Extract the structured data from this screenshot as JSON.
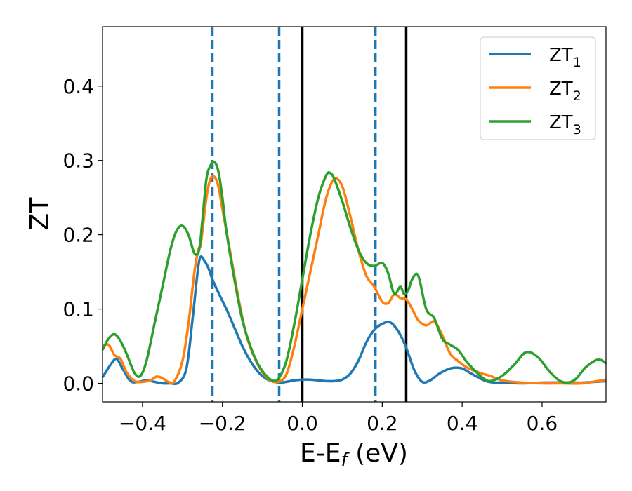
{
  "chart_data": {
    "type": "line",
    "xlabel": "E-E",
    "xlabel_sub": "f",
    "xlabel_unit": " (eV)",
    "ylabel": "ZT",
    "xlim": [
      -0.5,
      0.76
    ],
    "ylim": [
      -0.025,
      0.48
    ],
    "xticks": [
      -0.4,
      -0.2,
      0.0,
      0.2,
      0.4,
      0.6
    ],
    "xtick_labels": [
      "−0.4",
      "−0.2",
      "0.0",
      "0.2",
      "0.4",
      "0.6"
    ],
    "yticks": [
      0.0,
      0.1,
      0.2,
      0.3,
      0.4
    ],
    "ytick_labels": [
      "0.0",
      "0.1",
      "0.2",
      "0.3",
      "0.4"
    ],
    "grid": false,
    "legend_position": "top-right",
    "vlines": [
      {
        "x": -0.225,
        "style": "dashed",
        "color": "#1f77b4"
      },
      {
        "x": -0.058,
        "style": "dashed",
        "color": "#1f77b4"
      },
      {
        "x": 0.0,
        "style": "solid",
        "color": "#000000"
      },
      {
        "x": 0.183,
        "style": "dashed",
        "color": "#1f77b4"
      },
      {
        "x": 0.26,
        "style": "solid",
        "color": "#000000"
      }
    ],
    "series": [
      {
        "name": "ZT",
        "name_sub": "1",
        "color": "#1f77b4",
        "x": [
          -0.5,
          -0.48,
          -0.465,
          -0.45,
          -0.43,
          -0.41,
          -0.39,
          -0.37,
          -0.35,
          -0.33,
          -0.31,
          -0.29,
          -0.275,
          -0.262,
          -0.255,
          -0.245,
          -0.235,
          -0.225,
          -0.21,
          -0.19,
          -0.17,
          -0.15,
          -0.13,
          -0.11,
          -0.09,
          -0.07,
          -0.055,
          -0.04,
          -0.02,
          0.0,
          0.02,
          0.04,
          0.06,
          0.08,
          0.1,
          0.12,
          0.14,
          0.16,
          0.18,
          0.2,
          0.22,
          0.24,
          0.26,
          0.28,
          0.3,
          0.32,
          0.34,
          0.36,
          0.38,
          0.4,
          0.42,
          0.44,
          0.46,
          0.48,
          0.5,
          0.55,
          0.6,
          0.65,
          0.7,
          0.76
        ],
        "y": [
          0.008,
          0.025,
          0.033,
          0.02,
          0.003,
          0.002,
          0.004,
          0.002,
          0.0,
          0.0,
          0.001,
          0.02,
          0.085,
          0.15,
          0.17,
          0.165,
          0.155,
          0.14,
          0.122,
          0.1,
          0.075,
          0.05,
          0.03,
          0.015,
          0.006,
          0.002,
          0.001,
          0.002,
          0.004,
          0.005,
          0.005,
          0.004,
          0.003,
          0.003,
          0.005,
          0.013,
          0.03,
          0.055,
          0.072,
          0.08,
          0.082,
          0.07,
          0.048,
          0.018,
          0.002,
          0.004,
          0.012,
          0.018,
          0.021,
          0.02,
          0.014,
          0.008,
          0.003,
          0.001,
          0.001,
          0.0,
          0.001,
          0.001,
          0.001,
          0.003
        ]
      },
      {
        "name": "ZT",
        "name_sub": "2",
        "color": "#ff7f0e",
        "x": [
          -0.5,
          -0.485,
          -0.47,
          -0.455,
          -0.44,
          -0.42,
          -0.4,
          -0.38,
          -0.365,
          -0.35,
          -0.335,
          -0.32,
          -0.3,
          -0.285,
          -0.27,
          -0.26,
          -0.255,
          -0.25,
          -0.24,
          -0.23,
          -0.22,
          -0.21,
          -0.2,
          -0.18,
          -0.16,
          -0.14,
          -0.12,
          -0.1,
          -0.08,
          -0.06,
          -0.04,
          -0.02,
          0.0,
          0.02,
          0.04,
          0.06,
          0.08,
          0.1,
          0.12,
          0.14,
          0.16,
          0.18,
          0.2,
          0.215,
          0.23,
          0.245,
          0.26,
          0.275,
          0.29,
          0.31,
          0.33,
          0.35,
          0.37,
          0.39,
          0.41,
          0.43,
          0.45,
          0.47,
          0.5,
          0.55,
          0.6,
          0.65,
          0.7,
          0.76
        ],
        "y": [
          0.05,
          0.052,
          0.038,
          0.033,
          0.015,
          0.003,
          0.002,
          0.004,
          0.009,
          0.007,
          0.002,
          0.003,
          0.03,
          0.08,
          0.15,
          0.18,
          0.185,
          0.205,
          0.25,
          0.275,
          0.278,
          0.265,
          0.235,
          0.175,
          0.115,
          0.065,
          0.035,
          0.015,
          0.004,
          0.002,
          0.012,
          0.05,
          0.1,
          0.15,
          0.2,
          0.25,
          0.275,
          0.265,
          0.225,
          0.18,
          0.145,
          0.13,
          0.11,
          0.108,
          0.12,
          0.115,
          0.113,
          0.1,
          0.085,
          0.078,
          0.083,
          0.065,
          0.04,
          0.03,
          0.022,
          0.017,
          0.013,
          0.01,
          0.004,
          0.001,
          0.0,
          0.0,
          0.0,
          0.005
        ]
      },
      {
        "name": "ZT",
        "name_sub": "3",
        "color": "#2ca02c",
        "x": [
          -0.5,
          -0.485,
          -0.47,
          -0.455,
          -0.44,
          -0.42,
          -0.405,
          -0.39,
          -0.37,
          -0.35,
          -0.33,
          -0.315,
          -0.3,
          -0.285,
          -0.27,
          -0.258,
          -0.25,
          -0.24,
          -0.23,
          -0.22,
          -0.21,
          -0.2,
          -0.19,
          -0.17,
          -0.15,
          -0.13,
          -0.11,
          -0.09,
          -0.075,
          -0.06,
          -0.04,
          -0.02,
          0.0,
          0.02,
          0.04,
          0.06,
          0.07,
          0.08,
          0.1,
          0.12,
          0.14,
          0.16,
          0.18,
          0.2,
          0.215,
          0.23,
          0.245,
          0.255,
          0.265,
          0.275,
          0.29,
          0.31,
          0.33,
          0.35,
          0.37,
          0.39,
          0.41,
          0.43,
          0.45,
          0.47,
          0.5,
          0.53,
          0.56,
          0.59,
          0.62,
          0.65,
          0.68,
          0.71,
          0.74,
          0.76
        ],
        "y": [
          0.045,
          0.06,
          0.066,
          0.057,
          0.04,
          0.014,
          0.01,
          0.03,
          0.08,
          0.13,
          0.18,
          0.205,
          0.212,
          0.2,
          0.175,
          0.18,
          0.22,
          0.275,
          0.293,
          0.298,
          0.285,
          0.25,
          0.205,
          0.14,
          0.085,
          0.05,
          0.025,
          0.01,
          0.004,
          0.006,
          0.03,
          0.08,
          0.14,
          0.2,
          0.25,
          0.28,
          0.283,
          0.275,
          0.245,
          0.21,
          0.18,
          0.162,
          0.158,
          0.162,
          0.148,
          0.12,
          0.13,
          0.12,
          0.125,
          0.14,
          0.145,
          0.1,
          0.088,
          0.06,
          0.052,
          0.045,
          0.03,
          0.018,
          0.008,
          0.003,
          0.01,
          0.025,
          0.042,
          0.035,
          0.015,
          0.002,
          0.004,
          0.022,
          0.032,
          0.027
        ]
      }
    ]
  }
}
